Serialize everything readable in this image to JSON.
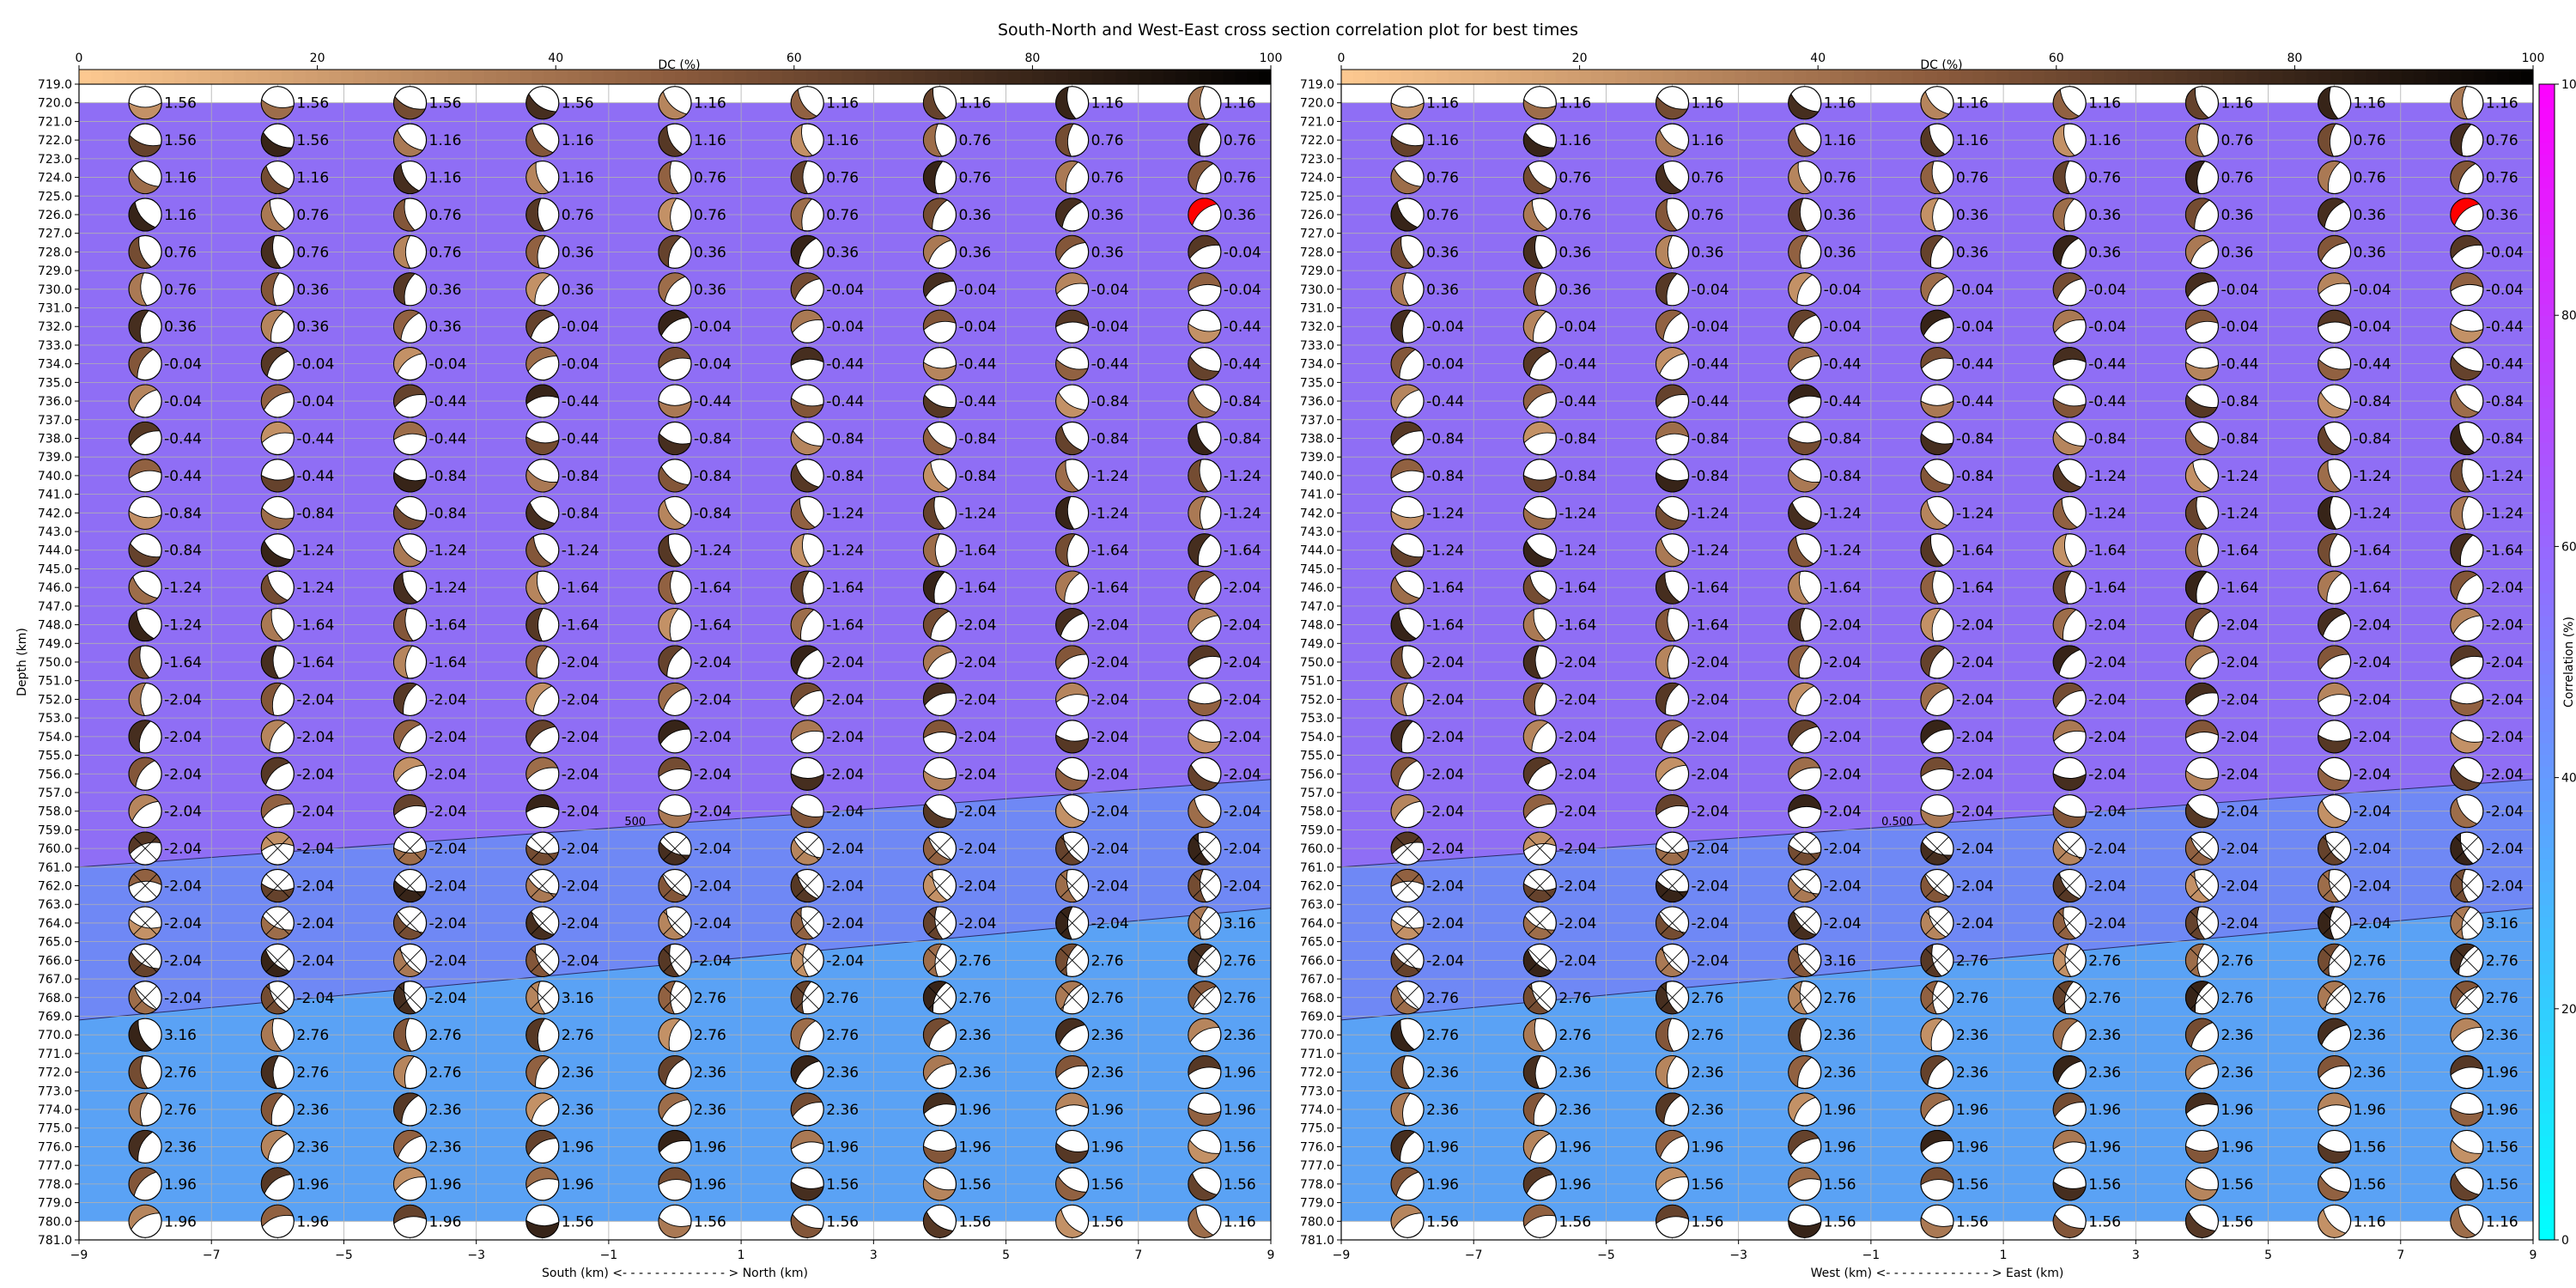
{
  "title": "South-North and West-East cross section correlation plot for best times",
  "chart_data": [
    {
      "type": "heatmap",
      "panel": "south-north",
      "xlabel": "South (km) <- - - - - - - - - - - - - > North (km)",
      "ylabel": "Depth (km)",
      "xlim": [
        -9,
        9
      ],
      "ylim": [
        781,
        719
      ],
      "xticks": [
        "−9",
        "−7",
        "−5",
        "−3",
        "−1",
        "1",
        "3",
        "5",
        "7",
        "9"
      ],
      "y_tick_range": [
        719,
        781
      ],
      "y_tick_step": 1,
      "grid": true,
      "dc_axis": {
        "label": "DC (%)",
        "ticks": [
          "0",
          "20",
          "40",
          "60",
          "80",
          "100"
        ],
        "range": [
          0,
          100
        ]
      },
      "x_positions": [
        -8,
        -6,
        -4,
        -2,
        0,
        2,
        4,
        6,
        8
      ],
      "depths": [
        720,
        722,
        724,
        726,
        728,
        730,
        732,
        734,
        736,
        738,
        740,
        742,
        744,
        746,
        748,
        750,
        752,
        754,
        756,
        758,
        760,
        762,
        764,
        766,
        768,
        770,
        772,
        774,
        776,
        778,
        780
      ],
      "time_labels": [
        [
          "1.56",
          "1.56",
          "1.56",
          "1.56",
          "1.16",
          "1.16",
          "1.16",
          "1.16",
          "1.16"
        ],
        [
          "1.56",
          "1.56",
          "1.16",
          "1.16",
          "1.16",
          "1.16",
          "0.76",
          "0.76",
          "0.76"
        ],
        [
          "1.16",
          "1.16",
          "1.16",
          "1.16",
          "0.76",
          "0.76",
          "0.76",
          "0.76",
          "0.76"
        ],
        [
          "1.16",
          "0.76",
          "0.76",
          "0.76",
          "0.76",
          "0.76",
          "0.36",
          "0.36",
          "0.36"
        ],
        [
          "0.76",
          "0.76",
          "0.76",
          "0.36",
          "0.36",
          "0.36",
          "0.36",
          "0.36",
          "-0.04"
        ],
        [
          "0.76",
          "0.36",
          "0.36",
          "0.36",
          "0.36",
          "-0.04",
          "-0.04",
          "-0.04",
          "-0.04"
        ],
        [
          "0.36",
          "0.36",
          "0.36",
          "-0.04",
          "-0.04",
          "-0.04",
          "-0.04",
          "-0.04",
          "-0.44"
        ],
        [
          "-0.04",
          "-0.04",
          "-0.04",
          "-0.04",
          "-0.04",
          "-0.44",
          "-0.44",
          "-0.44",
          "-0.44"
        ],
        [
          "-0.04",
          "-0.04",
          "-0.44",
          "-0.44",
          "-0.44",
          "-0.44",
          "-0.44",
          "-0.84",
          "-0.84"
        ],
        [
          "-0.44",
          "-0.44",
          "-0.44",
          "-0.44",
          "-0.84",
          "-0.84",
          "-0.84",
          "-0.84",
          "-0.84"
        ],
        [
          "-0.44",
          "-0.44",
          "-0.84",
          "-0.84",
          "-0.84",
          "-0.84",
          "-0.84",
          "-1.24",
          "-1.24"
        ],
        [
          "-0.84",
          "-0.84",
          "-0.84",
          "-0.84",
          "-0.84",
          "-1.24",
          "-1.24",
          "-1.24",
          "-1.24"
        ],
        [
          "-0.84",
          "-1.24",
          "-1.24",
          "-1.24",
          "-1.24",
          "-1.24",
          "-1.64",
          "-1.64",
          "-1.64"
        ],
        [
          "-1.24",
          "-1.24",
          "-1.24",
          "-1.64",
          "-1.64",
          "-1.64",
          "-1.64",
          "-1.64",
          "-2.04"
        ],
        [
          "-1.24",
          "-1.64",
          "-1.64",
          "-1.64",
          "-1.64",
          "-1.64",
          "-2.04",
          "-2.04",
          "-2.04"
        ],
        [
          "-1.64",
          "-1.64",
          "-1.64",
          "-2.04",
          "-2.04",
          "-2.04",
          "-2.04",
          "-2.04",
          "-2.04"
        ],
        [
          "-2.04",
          "-2.04",
          "-2.04",
          "-2.04",
          "-2.04",
          "-2.04",
          "-2.04",
          "-2.04",
          "-2.04"
        ],
        [
          "-2.04",
          "-2.04",
          "-2.04",
          "-2.04",
          "-2.04",
          "-2.04",
          "-2.04",
          "-2.04",
          "-2.04"
        ],
        [
          "-2.04",
          "-2.04",
          "-2.04",
          "-2.04",
          "-2.04",
          "-2.04",
          "-2.04",
          "-2.04",
          "-2.04"
        ],
        [
          "-2.04",
          "-2.04",
          "-2.04",
          "-2.04",
          "-2.04",
          "-2.04",
          "-2.04",
          "-2.04",
          "-2.04"
        ],
        [
          "-2.04",
          "-2.04",
          "-2.04",
          "-2.04",
          "-2.04",
          "-2.04",
          "-2.04",
          "-2.04",
          "-2.04"
        ],
        [
          "-2.04",
          "-2.04",
          "-2.04",
          "-2.04",
          "-2.04",
          "-2.04",
          "-2.04",
          "-2.04",
          "-2.04"
        ],
        [
          "-2.04",
          "-2.04",
          "-2.04",
          "-2.04",
          "-2.04",
          "-2.04",
          "-2.04",
          "-2.04",
          "3.16"
        ],
        [
          "-2.04",
          "-2.04",
          "-2.04",
          "-2.04",
          "-2.04",
          "-2.04",
          "2.76",
          "2.76",
          "2.76"
        ],
        [
          "-2.04",
          "-2.04",
          "-2.04",
          "3.16",
          "2.76",
          "2.76",
          "2.76",
          "2.76",
          "2.76"
        ],
        [
          "3.16",
          "2.76",
          "2.76",
          "2.76",
          "2.76",
          "2.76",
          "2.36",
          "2.36",
          "2.36"
        ],
        [
          "2.76",
          "2.76",
          "2.76",
          "2.36",
          "2.36",
          "2.36",
          "2.36",
          "2.36",
          "1.96"
        ],
        [
          "2.76",
          "2.36",
          "2.36",
          "2.36",
          "2.36",
          "2.36",
          "1.96",
          "1.96",
          "1.96"
        ],
        [
          "2.36",
          "2.36",
          "2.36",
          "1.96",
          "1.96",
          "1.96",
          "1.96",
          "1.96",
          "1.56"
        ],
        [
          "1.96",
          "1.96",
          "1.96",
          "1.96",
          "1.96",
          "1.56",
          "1.56",
          "1.56",
          "1.56"
        ],
        [
          "1.96",
          "1.96",
          "1.96",
          "1.56",
          "1.56",
          "1.56",
          "1.56",
          "1.56",
          "1.16"
        ]
      ],
      "correlation_zones": [
        {
          "correlation": 55,
          "color": "#8f6ef5",
          "region": "upper"
        },
        {
          "correlation": 43,
          "color": "#6f88f5",
          "region": "middle"
        },
        {
          "correlation": 33,
          "color": "#5aa2f5",
          "region": "lower"
        }
      ],
      "contour_label": "500",
      "best_solution": {
        "x": 8,
        "depth": 726
      }
    },
    {
      "type": "heatmap",
      "panel": "west-east",
      "xlabel": "West (km) <- - - - - - - - - - - - - > East (km)",
      "ylabel": "",
      "xlim": [
        -9,
        9
      ],
      "ylim": [
        781,
        719
      ],
      "xticks": [
        "−9",
        "−7",
        "−5",
        "−3",
        "−1",
        "1",
        "3",
        "5",
        "7",
        "9"
      ],
      "y_tick_range": [
        719,
        781
      ],
      "y_tick_step": 1,
      "grid": true,
      "dc_axis": {
        "label": "DC (%)",
        "ticks": [
          "0",
          "20",
          "40",
          "60",
          "80",
          "100"
        ],
        "range": [
          0,
          100
        ]
      },
      "x_positions": [
        -8,
        -6,
        -4,
        -2,
        0,
        2,
        4,
        6,
        8
      ],
      "depths": [
        720,
        722,
        724,
        726,
        728,
        730,
        732,
        734,
        736,
        738,
        740,
        742,
        744,
        746,
        748,
        750,
        752,
        754,
        756,
        758,
        760,
        762,
        764,
        766,
        768,
        770,
        772,
        774,
        776,
        778,
        780
      ],
      "time_labels": [
        [
          "1.16",
          "1.16",
          "1.16",
          "1.16",
          "1.16",
          "1.16",
          "1.16",
          "1.16",
          "1.16"
        ],
        [
          "1.16",
          "1.16",
          "1.16",
          "1.16",
          "1.16",
          "1.16",
          "0.76",
          "0.76",
          "0.76"
        ],
        [
          "0.76",
          "0.76",
          "0.76",
          "0.76",
          "0.76",
          "0.76",
          "0.76",
          "0.76",
          "0.76"
        ],
        [
          "0.76",
          "0.76",
          "0.76",
          "0.36",
          "0.36",
          "0.36",
          "0.36",
          "0.36",
          "0.36"
        ],
        [
          "0.36",
          "0.36",
          "0.36",
          "0.36",
          "0.36",
          "0.36",
          "0.36",
          "0.36",
          "-0.04"
        ],
        [
          "0.36",
          "0.36",
          "-0.04",
          "-0.04",
          "-0.04",
          "-0.04",
          "-0.04",
          "-0.04",
          "-0.04"
        ],
        [
          "-0.04",
          "-0.04",
          "-0.04",
          "-0.04",
          "-0.04",
          "-0.04",
          "-0.04",
          "-0.04",
          "-0.44"
        ],
        [
          "-0.04",
          "-0.44",
          "-0.44",
          "-0.44",
          "-0.44",
          "-0.44",
          "-0.44",
          "-0.44",
          "-0.44"
        ],
        [
          "-0.44",
          "-0.44",
          "-0.44",
          "-0.44",
          "-0.44",
          "-0.44",
          "-0.84",
          "-0.84",
          "-0.84"
        ],
        [
          "-0.84",
          "-0.84",
          "-0.84",
          "-0.84",
          "-0.84",
          "-0.84",
          "-0.84",
          "-0.84",
          "-0.84"
        ],
        [
          "-0.84",
          "-0.84",
          "-0.84",
          "-0.84",
          "-0.84",
          "-1.24",
          "-1.24",
          "-1.24",
          "-1.24"
        ],
        [
          "-1.24",
          "-1.24",
          "-1.24",
          "-1.24",
          "-1.24",
          "-1.24",
          "-1.24",
          "-1.24",
          "-1.24"
        ],
        [
          "-1.24",
          "-1.24",
          "-1.24",
          "-1.24",
          "-1.64",
          "-1.64",
          "-1.64",
          "-1.64",
          "-1.64"
        ],
        [
          "-1.64",
          "-1.64",
          "-1.64",
          "-1.64",
          "-1.64",
          "-1.64",
          "-1.64",
          "-1.64",
          "-2.04"
        ],
        [
          "-1.64",
          "-1.64",
          "-1.64",
          "-2.04",
          "-2.04",
          "-2.04",
          "-2.04",
          "-2.04",
          "-2.04"
        ],
        [
          "-2.04",
          "-2.04",
          "-2.04",
          "-2.04",
          "-2.04",
          "-2.04",
          "-2.04",
          "-2.04",
          "-2.04"
        ],
        [
          "-2.04",
          "-2.04",
          "-2.04",
          "-2.04",
          "-2.04",
          "-2.04",
          "-2.04",
          "-2.04",
          "-2.04"
        ],
        [
          "-2.04",
          "-2.04",
          "-2.04",
          "-2.04",
          "-2.04",
          "-2.04",
          "-2.04",
          "-2.04",
          "-2.04"
        ],
        [
          "-2.04",
          "-2.04",
          "-2.04",
          "-2.04",
          "-2.04",
          "-2.04",
          "-2.04",
          "-2.04",
          "-2.04"
        ],
        [
          "-2.04",
          "-2.04",
          "-2.04",
          "-2.04",
          "-2.04",
          "-2.04",
          "-2.04",
          "-2.04",
          "-2.04"
        ],
        [
          "-2.04",
          "-2.04",
          "-2.04",
          "-2.04",
          "-2.04",
          "-2.04",
          "-2.04",
          "-2.04",
          "-2.04"
        ],
        [
          "-2.04",
          "-2.04",
          "-2.04",
          "-2.04",
          "-2.04",
          "-2.04",
          "-2.04",
          "-2.04",
          "-2.04"
        ],
        [
          "-2.04",
          "-2.04",
          "-2.04",
          "-2.04",
          "-2.04",
          "-2.04",
          "-2.04",
          "-2.04",
          "3.16"
        ],
        [
          "-2.04",
          "-2.04",
          "-2.04",
          "3.16",
          "2.76",
          "2.76",
          "2.76",
          "2.76",
          "2.76"
        ],
        [
          "2.76",
          "2.76",
          "2.76",
          "2.76",
          "2.76",
          "2.76",
          "2.76",
          "2.76",
          "2.76"
        ],
        [
          "2.76",
          "2.76",
          "2.76",
          "2.36",
          "2.36",
          "2.36",
          "2.36",
          "2.36",
          "2.36"
        ],
        [
          "2.36",
          "2.36",
          "2.36",
          "2.36",
          "2.36",
          "2.36",
          "2.36",
          "2.36",
          "1.96"
        ],
        [
          "2.36",
          "2.36",
          "2.36",
          "1.96",
          "1.96",
          "1.96",
          "1.96",
          "1.96",
          "1.96"
        ],
        [
          "1.96",
          "1.96",
          "1.96",
          "1.96",
          "1.96",
          "1.96",
          "1.96",
          "1.56",
          "1.56"
        ],
        [
          "1.96",
          "1.96",
          "1.56",
          "1.56",
          "1.56",
          "1.56",
          "1.56",
          "1.56",
          "1.56"
        ],
        [
          "1.56",
          "1.56",
          "1.56",
          "1.56",
          "1.56",
          "1.56",
          "1.56",
          "1.16",
          "1.16"
        ]
      ],
      "correlation_zones": [
        {
          "correlation": 55,
          "color": "#8f6ef5",
          "region": "upper"
        },
        {
          "correlation": 43,
          "color": "#6f88f5",
          "region": "middle"
        },
        {
          "correlation": 33,
          "color": "#5aa2f5",
          "region": "lower"
        }
      ],
      "contour_label": "0.500",
      "best_solution": {
        "x": 8,
        "depth": 726
      }
    }
  ],
  "colorbar": {
    "label": "Correlation (%)",
    "ticks": [
      "0",
      "20",
      "40",
      "60",
      "80",
      "100"
    ],
    "range": [
      0,
      100
    ],
    "colors": [
      "#00ffff",
      "#ff00ff"
    ]
  },
  "colors": {
    "dc_low": "#fcc890",
    "dc_mid": "#8a5a3c",
    "dc_high": "#000000",
    "best_beachball": "#ff0000"
  }
}
